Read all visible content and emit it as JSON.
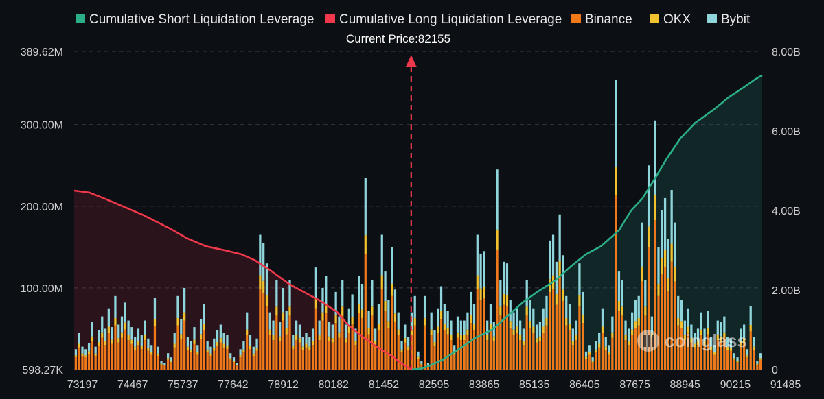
{
  "chart_data": {
    "type": "bar",
    "title": "",
    "legend": {
      "placement": "top",
      "items": [
        {
          "label": "Cumulative Short Liquidation Leverage",
          "color": "#2bae8a"
        },
        {
          "label": "Cumulative Long Liquidation Leverage",
          "color": "#f0384b"
        },
        {
          "label": "Binance",
          "color": "#f07a1a"
        },
        {
          "label": "OKX",
          "color": "#f2c12e"
        },
        {
          "label": "Bybit",
          "color": "#8fd6dc"
        }
      ]
    },
    "current_price_label": "Current Price:82155",
    "current_price": 82155,
    "watermark": "coinglass",
    "x_range": [
      73197,
      91485
    ],
    "x_ticks": [
      "73197",
      "74467",
      "75737",
      "77642",
      "78912",
      "80182",
      "81452",
      "82595",
      "83865",
      "85135",
      "86405",
      "87675",
      "88945",
      "90215",
      "91485"
    ],
    "y_left": {
      "range": [
        0,
        389.62
      ],
      "unit": "M",
      "ticks": [
        "598.27K",
        "100.00M",
        "200.00M",
        "300.00M",
        "389.62M"
      ],
      "tick_values": [
        0,
        100,
        200,
        300,
        389.62
      ]
    },
    "y_right": {
      "range": [
        0,
        8.0
      ],
      "unit": "B",
      "ticks": [
        "0",
        "2.00B",
        "4.00B",
        "6.00B",
        "8.00B"
      ],
      "tick_values": [
        0,
        2,
        4,
        6,
        8
      ]
    },
    "bar_totals_M": [
      25,
      45,
      28,
      25,
      32,
      58,
      28,
      48,
      65,
      50,
      75,
      52,
      90,
      55,
      65,
      82,
      60,
      52,
      40,
      50,
      42,
      60,
      38,
      30,
      88,
      28,
      10,
      8,
      20,
      15,
      45,
      90,
      62,
      100,
      40,
      35,
      52,
      30,
      62,
      80,
      35,
      28,
      38,
      48,
      55,
      45,
      42,
      20,
      15,
      8,
      25,
      35,
      70,
      42,
      28,
      38,
      165,
      155,
      130,
      70,
      60,
      110,
      58,
      100,
      72,
      110,
      42,
      60,
      55,
      40,
      45,
      40,
      50,
      125,
      60,
      100,
      115,
      58,
      55,
      95,
      65,
      110,
      55,
      75,
      92,
      50,
      115,
      105,
      235,
      72,
      110,
      50,
      80,
      165,
      120,
      85,
      150,
      98,
      70,
      35,
      55,
      40,
      70,
      90,
      22,
      10,
      90,
      8,
      70,
      48,
      75,
      102,
      80,
      72,
      60,
      30,
      65,
      60,
      60,
      70,
      95,
      80,
      165,
      142,
      145,
      60,
      80,
      58,
      245,
      110,
      132,
      130,
      85,
      70,
      75,
      60,
      50,
      110,
      85,
      75,
      55,
      58,
      75,
      90,
      158,
      165,
      132,
      190,
      140,
      90,
      80,
      50,
      60,
      130,
      95,
      22,
      30,
      15,
      35,
      45,
      75,
      40,
      30,
      65,
      355,
      120,
      110,
      60,
      50,
      70,
      85,
      90,
      180,
      110,
      250,
      65,
      305,
      150,
      195,
      210,
      160,
      220,
      180,
      90,
      85,
      60,
      75,
      55,
      45,
      50,
      70,
      50,
      72,
      40,
      30,
      60,
      58,
      65,
      40,
      38,
      20,
      15,
      50,
      55,
      25,
      78,
      40,
      10,
      20
    ],
    "bar_binance_share": 0.6,
    "bar_okx_share": 0.1,
    "long_cumulative_B": [
      [
        73197,
        4.5
      ],
      [
        73600,
        4.45
      ],
      [
        74000,
        4.3
      ],
      [
        74500,
        4.1
      ],
      [
        75000,
        3.9
      ],
      [
        75737,
        3.55
      ],
      [
        76200,
        3.3
      ],
      [
        76700,
        3.1
      ],
      [
        77200,
        3.0
      ],
      [
        77642,
        2.9
      ],
      [
        78000,
        2.75
      ],
      [
        78400,
        2.5
      ],
      [
        78912,
        2.15
      ],
      [
        79300,
        1.95
      ],
      [
        79700,
        1.75
      ],
      [
        80182,
        1.45
      ],
      [
        80500,
        1.1
      ],
      [
        80900,
        0.8
      ],
      [
        81200,
        0.6
      ],
      [
        81452,
        0.45
      ],
      [
        81700,
        0.3
      ],
      [
        81900,
        0.15
      ],
      [
        82155,
        0
      ]
    ],
    "short_cumulative_B": [
      [
        82155,
        0
      ],
      [
        82400,
        0.02
      ],
      [
        82595,
        0.08
      ],
      [
        83000,
        0.25
      ],
      [
        83400,
        0.5
      ],
      [
        83865,
        0.8
      ],
      [
        84300,
        1.0
      ],
      [
        84600,
        1.25
      ],
      [
        85135,
        1.7
      ],
      [
        85500,
        1.95
      ],
      [
        86000,
        2.25
      ],
      [
        86405,
        2.6
      ],
      [
        86800,
        2.9
      ],
      [
        87200,
        3.1
      ],
      [
        87675,
        3.5
      ],
      [
        88000,
        4.0
      ],
      [
        88300,
        4.3
      ],
      [
        88600,
        4.75
      ],
      [
        88945,
        5.3
      ],
      [
        89300,
        5.8
      ],
      [
        89700,
        6.2
      ],
      [
        90215,
        6.55
      ],
      [
        90600,
        6.85
      ],
      [
        91000,
        7.1
      ],
      [
        91300,
        7.3
      ],
      [
        91485,
        7.4
      ]
    ]
  }
}
